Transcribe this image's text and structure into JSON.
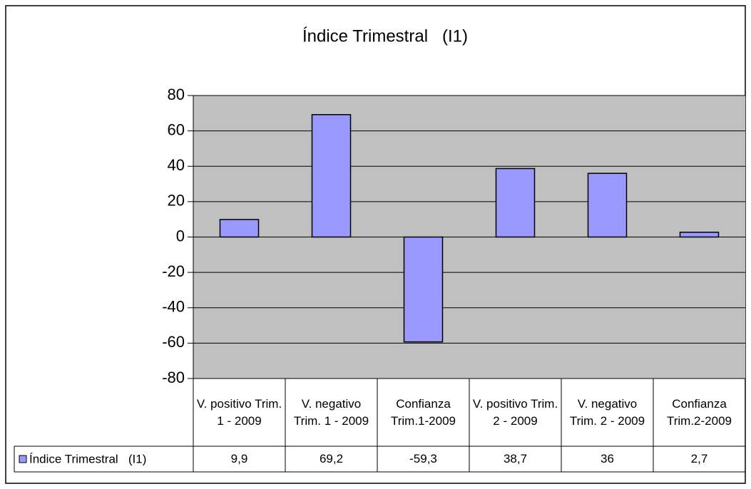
{
  "chart_data": {
    "type": "bar",
    "title": "Índice Trimestral   (I1)",
    "categories": [
      "V. positivo Trim. 1 - 2009",
      "V. negativo Trim. 1 - 2009",
      "Confianza Trim.1-2009",
      "V. positivo Trim. 2 - 2009",
      "V. negativo Trim. 2 - 2009",
      "Confianza Trim.2-2009"
    ],
    "series": [
      {
        "name": "Índice Trimestral   (I1)",
        "color": "#9999ff",
        "values": [
          9.9,
          69.2,
          -59.3,
          38.7,
          36,
          2.7
        ],
        "value_labels": [
          "9,9",
          "69,2",
          "-59,3",
          "38,7",
          "36",
          "2,7"
        ]
      }
    ],
    "ylim": [
      -80,
      80
    ],
    "yticks": [
      -80,
      -60,
      -40,
      -20,
      0,
      20,
      40,
      60,
      80
    ],
    "grid": true
  }
}
